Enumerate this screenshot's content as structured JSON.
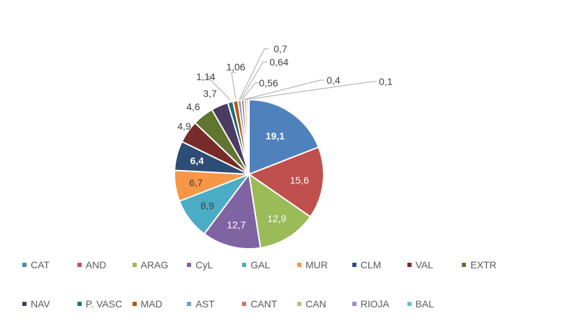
{
  "chart_data": {
    "type": "pie",
    "title": "",
    "start_angle": "12 o'clock",
    "direction": "clockwise",
    "legend_position": "bottom",
    "slices": [
      {
        "name": "CAT",
        "value": 19.1,
        "label": "19,1",
        "color": "#4F81BD"
      },
      {
        "name": "AND",
        "value": 15.6,
        "label": "15,6",
        "color": "#C0504D"
      },
      {
        "name": "ARAG",
        "value": 12.9,
        "label": "12,9",
        "color": "#9BBB59"
      },
      {
        "name": "CyL",
        "value": 12.7,
        "label": "12,7",
        "color": "#8064A2"
      },
      {
        "name": "GAL",
        "value": 8.9,
        "label": "8,9",
        "color": "#4BACC6"
      },
      {
        "name": "MUR",
        "value": 6.7,
        "label": "6,7",
        "color": "#F79646"
      },
      {
        "name": "CLM",
        "value": 6.4,
        "label": "6,4",
        "color": "#2C4D75"
      },
      {
        "name": "VAL",
        "value": 4.9,
        "label": "4,9",
        "color": "#772C2A"
      },
      {
        "name": "EXTR",
        "value": 4.6,
        "label": "4,6",
        "color": "#5F7530"
      },
      {
        "name": "NAV",
        "value": 3.7,
        "label": "3,7",
        "color": "#4D3B62"
      },
      {
        "name": "P. VASC",
        "value": 1.14,
        "label": "1,14",
        "color": "#276A7C"
      },
      {
        "name": "MAD",
        "value": 1.06,
        "label": "1,06",
        "color": "#B65708"
      },
      {
        "name": "AST",
        "value": 0.7,
        "label": "0,7",
        "color": "#729ACA"
      },
      {
        "name": "CANT",
        "value": 0.64,
        "label": "0,64",
        "color": "#CD7371"
      },
      {
        "name": "CAN",
        "value": 0.56,
        "label": "0,56",
        "color": "#AFC97A"
      },
      {
        "name": "RIOJA",
        "value": 0.4,
        "label": "0,4",
        "color": "#A18BBD"
      },
      {
        "name": "BAL",
        "value": 0.1,
        "label": "0,1",
        "color": "#6FBDD1"
      }
    ]
  }
}
